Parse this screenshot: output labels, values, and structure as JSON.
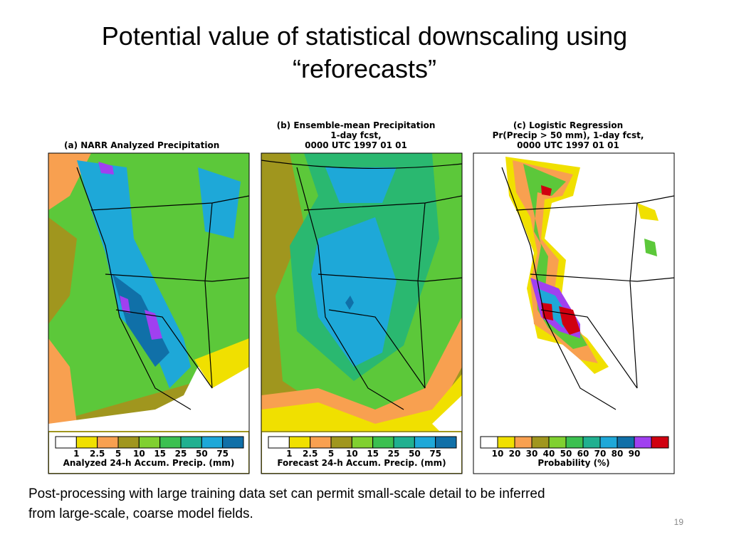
{
  "title": "Potential value of statistical downscaling using “reforecasts”",
  "panels": [
    {
      "title_lines": [
        "(a) NARR Analyzed Precipitation"
      ],
      "ticks": [
        1,
        2.5,
        5,
        10,
        15,
        25,
        50,
        75
      ],
      "caption": "Analyzed 24-h Accum. Precip. (mm)"
    },
    {
      "title_lines": [
        "(b) Ensemble-mean Precipitation",
        "1-day fcst,",
        "0000 UTC 1997 01 01"
      ],
      "ticks": [
        1,
        2.5,
        5,
        10,
        15,
        25,
        50,
        75
      ],
      "caption": "Forecast 24-h Accum. Precip. (mm)"
    },
    {
      "title_lines": [
        "(c) Logistic Regression",
        "Pr(Precip > 50 mm), 1-day fcst,",
        "0000 UTC 1997 01 01"
      ],
      "ticks": [
        10,
        20,
        30,
        40,
        50,
        60,
        70,
        80,
        90
      ],
      "caption": "Probability (%)"
    }
  ],
  "body_lines": [
    "Post-processing with large training data set can permit small-scale detail to be inferred",
    "from large-scale, coarse model fields."
  ],
  "page_number": "19"
}
